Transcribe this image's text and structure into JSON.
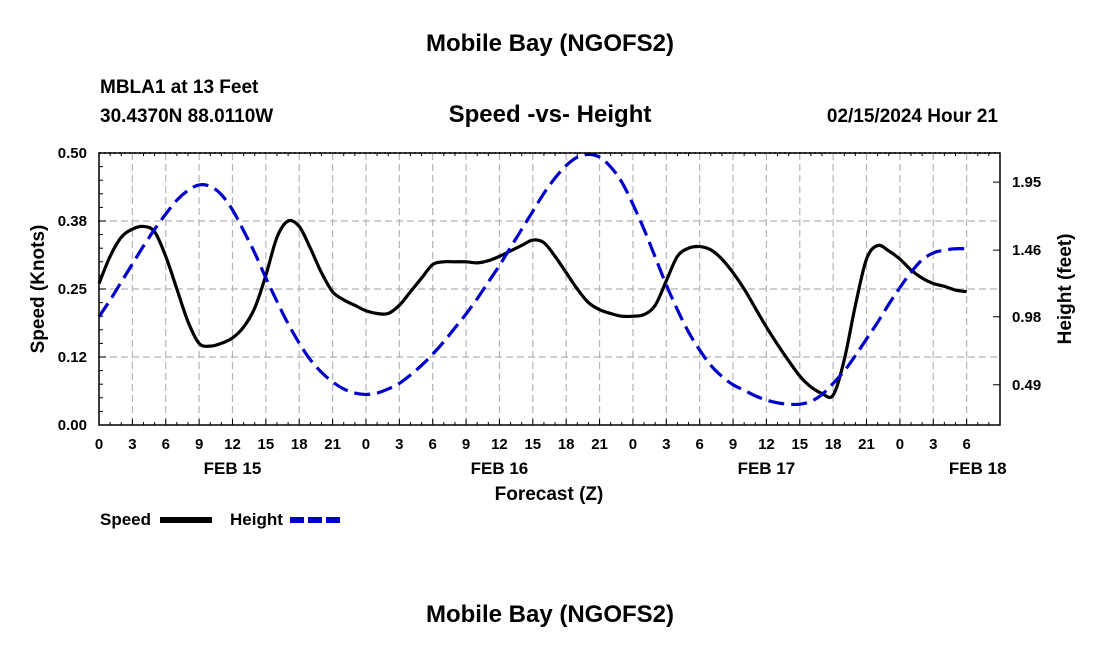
{
  "page": {
    "title_top": "Mobile Bay (NGOFS2)",
    "title_bottom": "Mobile Bay (NGOFS2)",
    "station": "MBLA1 at 13 Feet",
    "coordinates": "30.4370N  88.0110W",
    "subtitle": "Speed -vs- Height",
    "timestamp": "02/15/2024 Hour 21"
  },
  "chart_data": {
    "type": "line",
    "title": "Speed -vs- Height",
    "xlabel": "Forecast (Z)",
    "ylabel": "Speed (Knots)",
    "y2label": "Height (feet)",
    "xlim": [
      0,
      81
    ],
    "ylim": [
      0,
      0.5
    ],
    "y2lim": [
      0.2,
      2.16
    ],
    "grid": true,
    "x_ticks": [
      {
        "hour": 0,
        "label": "0"
      },
      {
        "hour": 3,
        "label": "3"
      },
      {
        "hour": 6,
        "label": "6"
      },
      {
        "hour": 9,
        "label": "9"
      },
      {
        "hour": 12,
        "label": "12"
      },
      {
        "hour": 15,
        "label": "15"
      },
      {
        "hour": 18,
        "label": "18"
      },
      {
        "hour": 21,
        "label": "21"
      },
      {
        "hour": 24,
        "label": "0"
      },
      {
        "hour": 27,
        "label": "3"
      },
      {
        "hour": 30,
        "label": "6"
      },
      {
        "hour": 33,
        "label": "9"
      },
      {
        "hour": 36,
        "label": "12"
      },
      {
        "hour": 39,
        "label": "15"
      },
      {
        "hour": 42,
        "label": "18"
      },
      {
        "hour": 45,
        "label": "21"
      },
      {
        "hour": 48,
        "label": "0"
      },
      {
        "hour": 51,
        "label": "3"
      },
      {
        "hour": 54,
        "label": "6"
      },
      {
        "hour": 57,
        "label": "9"
      },
      {
        "hour": 60,
        "label": "12"
      },
      {
        "hour": 63,
        "label": "15"
      },
      {
        "hour": 66,
        "label": "18"
      },
      {
        "hour": 69,
        "label": "21"
      },
      {
        "hour": 72,
        "label": "0"
      },
      {
        "hour": 75,
        "label": "3"
      },
      {
        "hour": 78,
        "label": "6"
      }
    ],
    "date_labels": [
      {
        "hour": 12,
        "label": "FEB 15"
      },
      {
        "hour": 36,
        "label": "FEB 16"
      },
      {
        "hour": 60,
        "label": "FEB 17"
      },
      {
        "hour": 79,
        "label": "FEB 18"
      }
    ],
    "y_ticks": [
      {
        "value": 0.0,
        "label": "0.00"
      },
      {
        "value": 0.125,
        "label": "0.12"
      },
      {
        "value": 0.25,
        "label": "0.25"
      },
      {
        "value": 0.375,
        "label": "0.38"
      },
      {
        "value": 0.5,
        "label": "0.50"
      }
    ],
    "y2_ticks": [
      {
        "value": 0.49,
        "label": "0.49"
      },
      {
        "value": 0.98,
        "label": "0.98"
      },
      {
        "value": 1.46,
        "label": "1.46"
      },
      {
        "value": 1.95,
        "label": "1.95"
      }
    ],
    "legend": [
      {
        "name": "Speed",
        "color": "#000000",
        "dash": "solid"
      },
      {
        "name": "Height",
        "color": "#0000cc",
        "dash": "dashed"
      }
    ],
    "series": [
      {
        "name": "Speed",
        "axis": "left",
        "color": "#000000",
        "x": [
          0,
          1,
          2,
          3,
          4,
          5,
          6,
          7,
          8,
          9,
          10,
          11,
          12,
          13,
          14,
          15,
          16,
          17,
          18,
          19,
          20,
          21,
          22,
          23,
          24,
          25,
          26,
          27,
          28,
          29,
          30,
          31,
          32,
          33,
          34,
          35,
          36,
          37,
          38,
          39,
          40,
          41,
          42,
          43,
          44,
          45,
          46,
          47,
          48,
          49,
          50,
          51,
          52,
          53,
          54,
          55,
          56,
          57,
          58,
          59,
          60,
          61,
          62,
          63,
          64,
          65,
          66,
          67,
          68,
          69,
          70,
          71,
          72,
          73,
          74,
          75,
          76,
          77,
          78
        ],
        "values": [
          0.26,
          0.31,
          0.345,
          0.36,
          0.365,
          0.355,
          0.31,
          0.25,
          0.19,
          0.15,
          0.145,
          0.15,
          0.16,
          0.18,
          0.215,
          0.275,
          0.345,
          0.375,
          0.365,
          0.325,
          0.28,
          0.245,
          0.23,
          0.22,
          0.21,
          0.205,
          0.205,
          0.22,
          0.245,
          0.27,
          0.295,
          0.3,
          0.3,
          0.3,
          0.298,
          0.302,
          0.31,
          0.32,
          0.33,
          0.34,
          0.335,
          0.31,
          0.28,
          0.25,
          0.225,
          0.212,
          0.205,
          0.2,
          0.2,
          0.203,
          0.22,
          0.265,
          0.31,
          0.325,
          0.328,
          0.322,
          0.305,
          0.28,
          0.25,
          0.215,
          0.18,
          0.148,
          0.118,
          0.09,
          0.07,
          0.058,
          0.055,
          0.12,
          0.22,
          0.305,
          0.33,
          0.32,
          0.305,
          0.285,
          0.27,
          0.26,
          0.255,
          0.248,
          0.245
        ]
      },
      {
        "name": "Height",
        "axis": "right",
        "color": "#0000cc",
        "x": [
          0,
          1,
          2,
          3,
          4,
          5,
          6,
          7,
          8,
          9,
          10,
          11,
          12,
          13,
          14,
          15,
          16,
          17,
          18,
          19,
          20,
          21,
          22,
          23,
          24,
          25,
          26,
          27,
          28,
          29,
          30,
          31,
          32,
          33,
          34,
          35,
          36,
          37,
          38,
          39,
          40,
          41,
          42,
          43,
          44,
          45,
          46,
          47,
          48,
          49,
          50,
          51,
          52,
          53,
          54,
          55,
          56,
          57,
          58,
          59,
          60,
          61,
          62,
          63,
          64,
          65,
          66,
          67,
          68,
          69,
          70,
          71,
          72,
          73,
          74,
          75,
          76,
          77,
          78
        ],
        "values": [
          0.98,
          1.1,
          1.23,
          1.36,
          1.49,
          1.61,
          1.72,
          1.82,
          1.89,
          1.93,
          1.92,
          1.86,
          1.75,
          1.6,
          1.44,
          1.26,
          1.09,
          0.93,
          0.79,
          0.67,
          0.58,
          0.51,
          0.46,
          0.43,
          0.42,
          0.43,
          0.46,
          0.5,
          0.56,
          0.63,
          0.71,
          0.8,
          0.9,
          1.0,
          1.11,
          1.23,
          1.35,
          1.48,
          1.61,
          1.74,
          1.87,
          1.98,
          2.07,
          2.13,
          2.15,
          2.13,
          2.06,
          1.95,
          1.79,
          1.61,
          1.41,
          1.21,
          1.03,
          0.87,
          0.74,
          0.63,
          0.55,
          0.49,
          0.45,
          0.41,
          0.38,
          0.36,
          0.35,
          0.35,
          0.37,
          0.42,
          0.5,
          0.59,
          0.7,
          0.82,
          0.94,
          1.07,
          1.19,
          1.3,
          1.39,
          1.44,
          1.46,
          1.47,
          1.47
        ]
      }
    ]
  }
}
